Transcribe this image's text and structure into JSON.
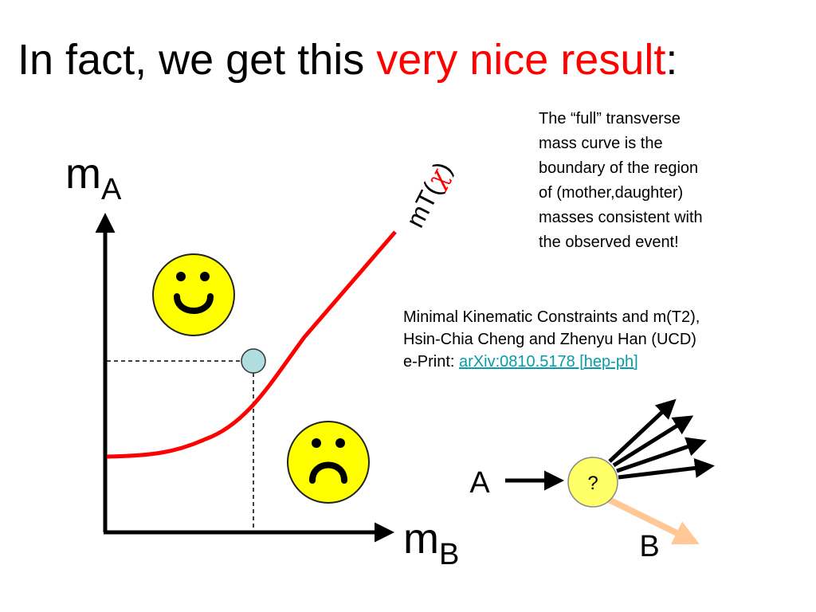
{
  "title": {
    "prefix": "In fact, we get this ",
    "highlight": "very nice result",
    "suffix": ":"
  },
  "note": {
    "lines": [
      "The “full” transverse",
      "mass curve is the",
      "boundary of the region",
      "of (mother,daughter)",
      "masses consistent with",
      "the observed event!"
    ]
  },
  "reference": {
    "line1": "Minimal Kinematic Constraints and m(T2),",
    "line2": "Hsin-Chia Cheng and Zhenyu Han (UCD)",
    "eprint_prefix": "e-Print: ",
    "eprint_link": "arXiv:0810.5178 [hep-ph]"
  },
  "plot": {
    "y_axis_label": "m",
    "y_axis_subscript": "A",
    "x_axis_label": "m",
    "x_axis_subscript": "B",
    "curve_label_prefix": "mT(",
    "curve_label_symbol": "χ",
    "curve_label_suffix": ")",
    "curve_color": "#ff0000",
    "point_color": "#b0dde0",
    "happy_face_color": "#ffff00",
    "sad_face_color": "#ffff00"
  },
  "decay": {
    "mother_label": "A",
    "daughter_label": "B",
    "unknown_label": "?",
    "node_color": "#ffff66",
    "invisible_arrow_color": "#ffc896"
  }
}
